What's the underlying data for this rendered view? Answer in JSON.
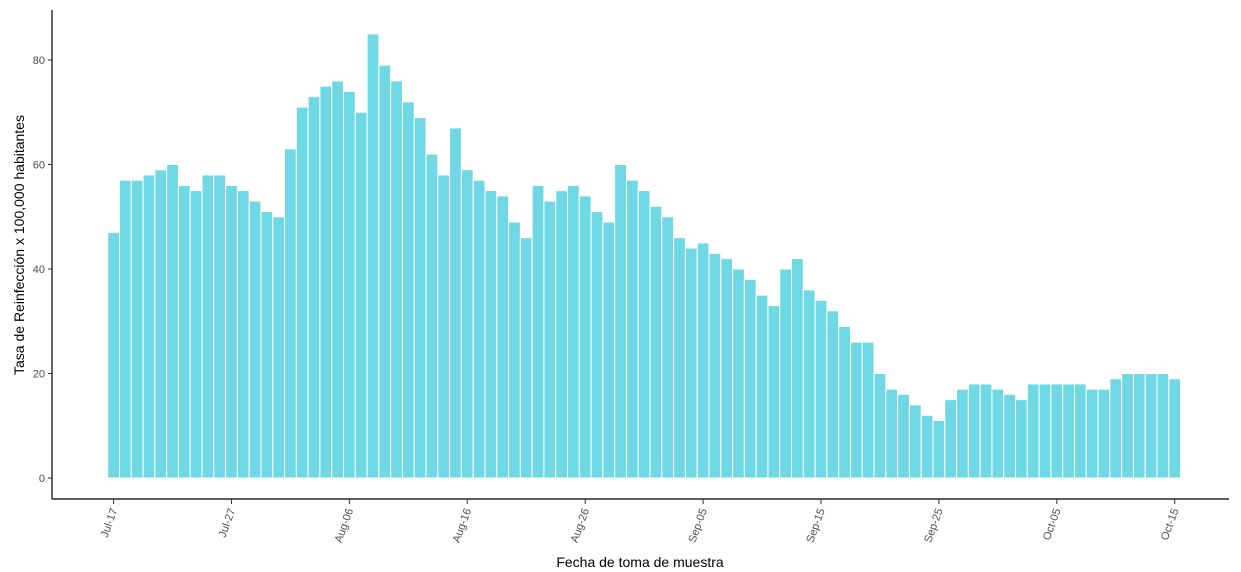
{
  "chart_data": {
    "type": "bar",
    "title": "",
    "xlabel": "Fecha de toma de muestra",
    "ylabel": "Tasa de Reinfección x 100,000 habitantes",
    "ylim": [
      0,
      87
    ],
    "grid": false,
    "bar_color": "#6fd8e5",
    "x_tick_labels": [
      "Jul-17",
      "Jul-27",
      "Aug-06",
      "Aug-16",
      "Aug-26",
      "Sep-05",
      "Sep-15",
      "Sep-25",
      "Oct-05",
      "Oct-15"
    ],
    "x_tick_day_index": [
      0,
      10,
      20,
      30,
      40,
      50,
      60,
      70,
      80,
      90
    ],
    "y_ticks": [
      0,
      20,
      40,
      60,
      80
    ],
    "start_label": "Jul-17",
    "categories": [
      "Jul-17",
      "Jul-18",
      "Jul-19",
      "Jul-20",
      "Jul-21",
      "Jul-22",
      "Jul-23",
      "Jul-24",
      "Jul-25",
      "Jul-26",
      "Jul-27",
      "Jul-28",
      "Jul-29",
      "Jul-30",
      "Jul-31",
      "Aug-01",
      "Aug-02",
      "Aug-03",
      "Aug-04",
      "Aug-05",
      "Aug-06",
      "Aug-07",
      "Aug-08",
      "Aug-09",
      "Aug-10",
      "Aug-11",
      "Aug-12",
      "Aug-13",
      "Aug-14",
      "Aug-15",
      "Aug-16",
      "Aug-17",
      "Aug-18",
      "Aug-19",
      "Aug-20",
      "Aug-21",
      "Aug-22",
      "Aug-23",
      "Aug-24",
      "Aug-25",
      "Aug-26",
      "Aug-27",
      "Aug-28",
      "Aug-29",
      "Aug-30",
      "Aug-31",
      "Sep-01",
      "Sep-02",
      "Sep-03",
      "Sep-04",
      "Sep-05",
      "Sep-06",
      "Sep-07",
      "Sep-08",
      "Sep-09",
      "Sep-10",
      "Sep-11",
      "Sep-12",
      "Sep-13",
      "Sep-14",
      "Sep-15",
      "Sep-16",
      "Sep-17",
      "Sep-18",
      "Sep-19",
      "Sep-20",
      "Sep-21",
      "Sep-22",
      "Sep-23",
      "Sep-24",
      "Sep-25",
      "Sep-26",
      "Sep-27",
      "Sep-28",
      "Sep-29",
      "Sep-30",
      "Oct-01",
      "Oct-02",
      "Oct-03",
      "Oct-04",
      "Oct-05",
      "Oct-06",
      "Oct-07",
      "Oct-08",
      "Oct-09",
      "Oct-10",
      "Oct-11",
      "Oct-12",
      "Oct-13",
      "Oct-14",
      "Oct-15"
    ],
    "values": [
      47,
      57,
      57,
      58,
      59,
      60,
      56,
      55,
      58,
      58,
      56,
      55,
      53,
      51,
      50,
      63,
      71,
      73,
      75,
      76,
      74,
      70,
      85,
      79,
      76,
      72,
      69,
      62,
      58,
      67,
      59,
      57,
      55,
      54,
      49,
      46,
      56,
      53,
      55,
      56,
      54,
      51,
      49,
      60,
      57,
      55,
      52,
      50,
      46,
      44,
      45,
      43,
      42,
      40,
      38,
      35,
      33,
      40,
      42,
      36,
      34,
      32,
      29,
      26,
      26,
      20,
      17,
      16,
      14,
      12,
      11,
      15,
      17,
      18,
      18,
      17,
      16,
      15,
      18,
      18,
      18,
      18,
      18,
      17,
      17,
      19,
      20,
      20,
      20,
      20,
      19
    ]
  }
}
